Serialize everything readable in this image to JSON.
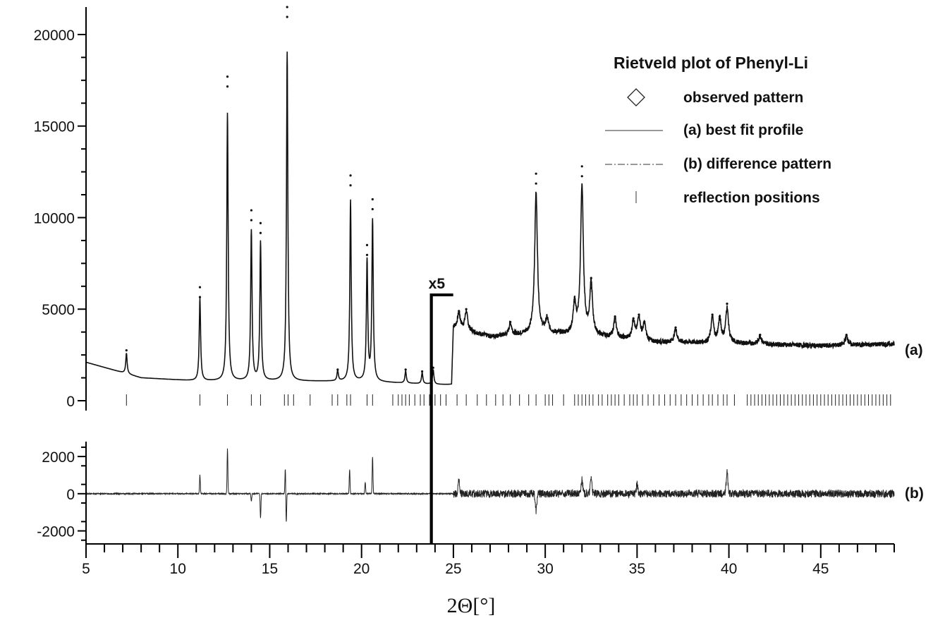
{
  "chart_data": {
    "type": "line",
    "title": "Rietveld plot of Phenyl-Li",
    "xlabel": "2Θ[°]",
    "xlim": [
      5,
      49
    ],
    "x_ticks": [
      5,
      10,
      15,
      20,
      25,
      30,
      35,
      40,
      45
    ],
    "scale_annotation": "x5",
    "scale_break_x": 23.8,
    "panels": [
      {
        "id": "a",
        "label": "(a)",
        "ylim": [
          0,
          21500
        ],
        "y_ticks": [
          0,
          5000,
          10000,
          15000,
          20000
        ]
      },
      {
        "id": "b",
        "label": "(b)",
        "ylim": [
          -2700,
          2800
        ],
        "y_ticks": [
          -2000,
          0,
          2000
        ]
      }
    ],
    "legend": {
      "placement": "top-right",
      "entries": [
        {
          "label": "observed pattern",
          "marker": "diamond"
        },
        {
          "label": "(a) best fit profile",
          "marker": "solid-line"
        },
        {
          "label": "(b) difference pattern",
          "marker": "dash-dot-line"
        },
        {
          "label": "reflection positions",
          "marker": "tick"
        }
      ]
    },
    "series": [
      {
        "name": "observed pattern",
        "peaks": [
          {
            "x": 7.2,
            "y": 2750
          },
          {
            "x": 11.2,
            "y": 6200
          },
          {
            "x": 12.7,
            "y": 17700
          },
          {
            "x": 14.0,
            "y": 10400
          },
          {
            "x": 14.5,
            "y": 9700
          },
          {
            "x": 15.95,
            "y": 21500
          },
          {
            "x": 18.7,
            "y": 1700
          },
          {
            "x": 19.4,
            "y": 12300
          },
          {
            "x": 20.3,
            "y": 8500
          },
          {
            "x": 20.6,
            "y": 11000
          },
          {
            "x": 22.4,
            "y": 1700
          },
          {
            "x": 23.3,
            "y": 1600
          },
          {
            "x": 23.9,
            "y": 1800
          },
          {
            "x": 25.3,
            "y": 4900
          },
          {
            "x": 25.7,
            "y": 5000
          },
          {
            "x": 28.1,
            "y": 4300
          },
          {
            "x": 29.5,
            "y": 12400
          },
          {
            "x": 30.1,
            "y": 4500
          },
          {
            "x": 31.6,
            "y": 5400
          },
          {
            "x": 32.0,
            "y": 12800
          },
          {
            "x": 32.5,
            "y": 6700
          },
          {
            "x": 33.8,
            "y": 4600
          },
          {
            "x": 34.8,
            "y": 4500
          },
          {
            "x": 35.1,
            "y": 4700
          },
          {
            "x": 35.4,
            "y": 4300
          },
          {
            "x": 37.1,
            "y": 4000
          },
          {
            "x": 39.1,
            "y": 4700
          },
          {
            "x": 39.5,
            "y": 4600
          },
          {
            "x": 39.9,
            "y": 5300
          },
          {
            "x": 41.7,
            "y": 3600
          },
          {
            "x": 46.4,
            "y": 3600
          }
        ]
      },
      {
        "name": "(a) best fit profile",
        "background": [
          {
            "x": 5,
            "y": 2100
          },
          {
            "x": 8,
            "y": 1250
          },
          {
            "x": 11,
            "y": 1080
          },
          {
            "x": 15,
            "y": 1070
          },
          {
            "x": 20,
            "y": 1050
          },
          {
            "x": 24.9,
            "y": 850
          },
          {
            "x": 25.0,
            "y": 4000
          },
          {
            "x": 27,
            "y": 3500
          },
          {
            "x": 30,
            "y": 3700
          },
          {
            "x": 33,
            "y": 3500
          },
          {
            "x": 36,
            "y": 3200
          },
          {
            "x": 40,
            "y": 3150
          },
          {
            "x": 45,
            "y": 3000
          },
          {
            "x": 49,
            "y": 3100
          }
        ]
      },
      {
        "name": "(b) difference pattern",
        "features": [
          {
            "x": 11.2,
            "y": 1000
          },
          {
            "x": 12.7,
            "y": 2400
          },
          {
            "x": 14.0,
            "y": -400
          },
          {
            "x": 14.5,
            "y": -1300
          },
          {
            "x": 15.9,
            "y": -1600
          },
          {
            "x": 15.85,
            "y": 1400
          },
          {
            "x": 19.35,
            "y": 1300
          },
          {
            "x": 20.2,
            "y": 600
          },
          {
            "x": 20.6,
            "y": 2000
          },
          {
            "x": 25.3,
            "y": 700
          },
          {
            "x": 29.5,
            "y": -900
          },
          {
            "x": 32.0,
            "y": 800
          },
          {
            "x": 32.5,
            "y": 900
          },
          {
            "x": 35.0,
            "y": 500
          },
          {
            "x": 39.9,
            "y": 1200
          }
        ]
      },
      {
        "name": "reflection positions",
        "x": [
          7.2,
          11.2,
          12.7,
          14.0,
          14.5,
          15.8,
          16.0,
          16.3,
          17.2,
          18.4,
          18.7,
          19.2,
          19.4,
          20.3,
          20.6,
          21.7,
          22.0,
          22.2,
          22.4,
          22.6,
          22.9,
          23.2,
          23.4,
          23.7,
          24.0,
          24.3,
          24.6,
          25.2,
          25.7,
          26.3,
          26.8,
          27.3,
          27.7,
          28.1,
          28.6,
          29.1,
          29.5,
          30.0,
          30.2,
          30.4,
          31.0,
          31.6,
          31.8,
          32.0,
          32.2,
          32.4,
          32.6,
          32.9,
          33.1,
          33.4,
          33.6,
          33.8,
          34.0,
          34.3,
          34.6,
          34.8,
          35.0,
          35.3,
          35.6,
          35.9,
          36.2,
          36.5,
          36.8,
          37.1,
          37.4,
          37.7,
          38.0,
          38.3,
          38.6,
          38.9,
          39.1,
          39.4,
          39.7,
          39.9,
          40.3,
          41.0,
          41.2,
          41.4,
          41.6,
          41.8,
          42.0,
          42.2,
          42.4,
          42.6,
          42.8,
          43.0,
          43.2,
          43.4,
          43.6,
          43.8,
          44.0,
          44.2,
          44.4,
          44.6,
          44.8,
          45.0,
          45.2,
          45.4,
          45.6,
          45.8,
          46.0,
          46.2,
          46.4,
          46.6,
          46.8,
          47.0,
          47.2,
          47.4,
          47.6,
          47.8,
          48.0,
          48.2,
          48.4,
          48.6,
          48.8
        ]
      }
    ]
  }
}
